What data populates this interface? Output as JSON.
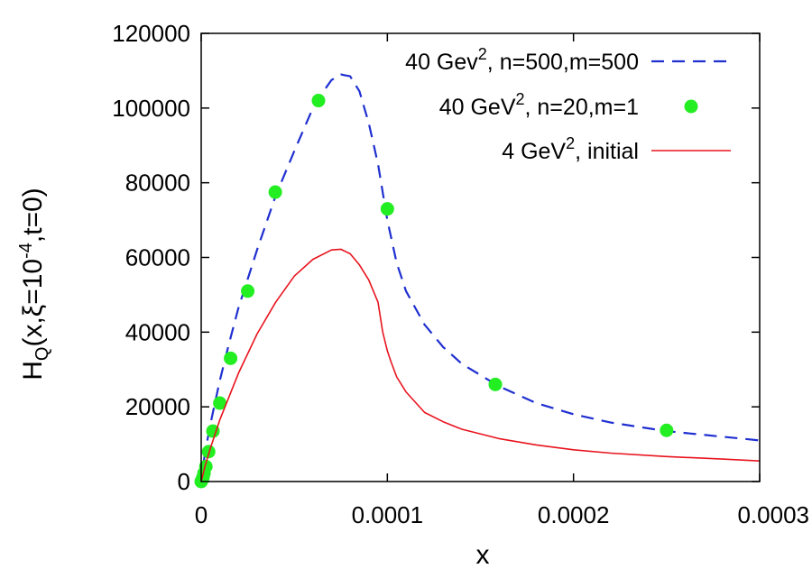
{
  "chart_data": {
    "type": "line",
    "xlabel": "x",
    "ylabel_parts": {
      "h": "H",
      "q": "Q",
      "mid": "(x,ξ=10",
      "exp": "-4",
      "end": ",t=0)"
    },
    "xlim": [
      0,
      0.0003
    ],
    "ylim": [
      0,
      120000
    ],
    "x_ticks": [
      0,
      0.0001,
      0.0002,
      0.0003
    ],
    "x_tick_labels": [
      "0",
      "0.0001",
      "0.0002",
      "0.0003"
    ],
    "y_ticks": [
      0,
      20000,
      40000,
      60000,
      80000,
      100000,
      120000
    ],
    "y_tick_labels": [
      "0",
      "20000",
      "40000",
      "60000",
      "80000",
      "100000",
      "120000"
    ],
    "grid": false,
    "legend_position": "top-right",
    "series": [
      {
        "name_parts": {
          "pre": "40 Gev",
          "sup": "2",
          "post": ", n=500,m=500"
        },
        "style": "dashed",
        "color": "#1f2fd0",
        "x": [
          0,
          2e-06,
          5e-06,
          1e-05,
          1.5e-05,
          2e-05,
          3e-05,
          4e-05,
          5e-05,
          6e-05,
          6.5e-05,
          7e-05,
          7.5e-05,
          8e-05,
          8.5e-05,
          9e-05,
          9.5e-05,
          0.0001,
          0.000105,
          0.00011,
          0.00012,
          0.00013,
          0.00014,
          0.00016,
          0.00018,
          0.0002,
          0.00022,
          0.00025,
          0.00028,
          0.0003
        ],
        "y": [
          0,
          7500,
          15500,
          27000,
          37000,
          46500,
          62000,
          76500,
          88500,
          100000,
          104000,
          107500,
          109000,
          108500,
          104500,
          96000,
          85000,
          70000,
          58500,
          51000,
          42000,
          36000,
          31500,
          25500,
          21000,
          18000,
          15800,
          13500,
          12000,
          11000
        ]
      },
      {
        "name_parts": {
          "pre": "40 GeV",
          "sup": "2",
          "post": ", n=20,m=1"
        },
        "style": "points",
        "color": "#22ee22",
        "x": [
          0,
          5e-07,
          1e-06,
          1.5e-06,
          2.5e-06,
          4e-06,
          6.3e-06,
          1e-05,
          1.58e-05,
          2.5e-05,
          3.98e-05,
          6.3e-05,
          0.0001,
          0.000158,
          0.00025
        ],
        "y": [
          0,
          500,
          1200,
          2200,
          4000,
          8000,
          13500,
          21000,
          33000,
          51000,
          77500,
          102000,
          73000,
          26000,
          13700
        ]
      },
      {
        "name_parts": {
          "pre": "4 GeV",
          "sup": "2",
          "post": ", initial"
        },
        "style": "solid",
        "color": "#e8141e",
        "x": [
          0,
          2e-06,
          5e-06,
          1e-05,
          2e-05,
          3e-05,
          4e-05,
          5e-05,
          6e-05,
          7e-05,
          7.5e-05,
          8e-05,
          8.5e-05,
          9e-05,
          9.5e-05,
          9.75e-05,
          0.0001,
          0.000102,
          0.000105,
          0.00011,
          0.00012,
          0.00013,
          0.00014,
          0.00016,
          0.00018,
          0.0002,
          0.00022,
          0.00025,
          0.00028,
          0.0003
        ],
        "y": [
          0,
          4000,
          9000,
          16500,
          29000,
          39500,
          48000,
          55000,
          59500,
          62000,
          62200,
          61000,
          58000,
          54000,
          48000,
          40000,
          35000,
          32000,
          28000,
          24000,
          18500,
          16000,
          14000,
          11500,
          9800,
          8500,
          7600,
          6700,
          6000,
          5500
        ]
      }
    ]
  }
}
